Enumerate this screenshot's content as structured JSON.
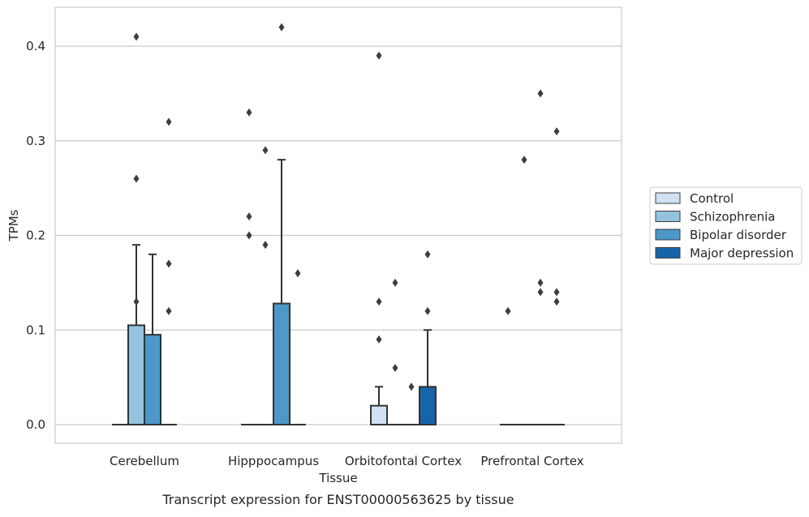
{
  "colors": {
    "grid": "#cccccc",
    "frame": "#cccccc",
    "line": "#333333",
    "Control": "#cfe1f2",
    "Schizophrenia": "#93c4de",
    "Bipolar disorder": "#4b98c9",
    "Major depression": "#1764ab"
  },
  "chart_data": {
    "type": "box",
    "title": "",
    "caption": "Transcript expression for ENST00000563625 by tissue",
    "xlabel": "Tissue",
    "ylabel": "TPMs",
    "ylim": [
      -0.02,
      0.44
    ],
    "yticks": [
      0.0,
      0.1,
      0.2,
      0.3,
      0.4
    ],
    "ytick_labels": [
      "0.0",
      "0.1",
      "0.2",
      "0.3",
      "0.4"
    ],
    "grid": "horizontal",
    "legend_position": "right",
    "legend": [
      "Control",
      "Schizophrenia",
      "Bipolar disorder",
      "Major depression"
    ],
    "categories": [
      "Cerebellum",
      "Hipppocampus",
      "Orbitofontal Cortex",
      "Prefrontal Cortex"
    ],
    "series": [
      {
        "name": "Control",
        "boxes": [
          {
            "q1": 0,
            "median": 0,
            "q3": 0,
            "whisker_low": 0,
            "whisker_high": 0,
            "outliers": []
          },
          {
            "q1": 0,
            "median": 0,
            "q3": 0,
            "whisker_low": 0,
            "whisker_high": 0,
            "outliers": [
              0.2,
              0.22,
              0.33
            ]
          },
          {
            "q1": 0,
            "median": 0,
            "q3": 0.02,
            "whisker_low": 0,
            "whisker_high": 0.04,
            "outliers": [
              0.09,
              0.13,
              0.39
            ]
          },
          {
            "q1": 0,
            "median": 0,
            "q3": 0,
            "whisker_low": 0,
            "whisker_high": 0,
            "outliers": [
              0.12
            ]
          }
        ]
      },
      {
        "name": "Schizophrenia",
        "boxes": [
          {
            "q1": 0,
            "median": 0,
            "q3": 0.105,
            "whisker_low": 0,
            "whisker_high": 0.19,
            "outliers": [
              0.13,
              0.26,
              0.41
            ]
          },
          {
            "q1": 0,
            "median": 0,
            "q3": 0,
            "whisker_low": 0,
            "whisker_high": 0,
            "outliers": [
              0.19,
              0.29
            ]
          },
          {
            "q1": 0,
            "median": 0,
            "q3": 0,
            "whisker_low": 0,
            "whisker_high": 0,
            "outliers": [
              0.06,
              0.15
            ]
          },
          {
            "q1": 0,
            "median": 0,
            "q3": 0,
            "whisker_low": 0,
            "whisker_high": 0,
            "outliers": [
              0.28
            ]
          }
        ]
      },
      {
        "name": "Bipolar disorder",
        "boxes": [
          {
            "q1": 0,
            "median": 0,
            "q3": 0.095,
            "whisker_low": 0,
            "whisker_high": 0.18,
            "outliers": []
          },
          {
            "q1": 0,
            "median": 0,
            "q3": 0.128,
            "whisker_low": 0,
            "whisker_high": 0.28,
            "outliers": [
              0.42
            ]
          },
          {
            "q1": 0,
            "median": 0,
            "q3": 0,
            "whisker_low": 0,
            "whisker_high": 0,
            "outliers": [
              0.04
            ]
          },
          {
            "q1": 0,
            "median": 0,
            "q3": 0,
            "whisker_low": 0,
            "whisker_high": 0,
            "outliers": [
              0.14,
              0.15,
              0.35
            ]
          }
        ]
      },
      {
        "name": "Major depression",
        "boxes": [
          {
            "q1": 0,
            "median": 0,
            "q3": 0,
            "whisker_low": 0,
            "whisker_high": 0,
            "outliers": [
              0.12,
              0.17,
              0.32
            ]
          },
          {
            "q1": 0,
            "median": 0,
            "q3": 0,
            "whisker_low": 0,
            "whisker_high": 0,
            "outliers": [
              0.16
            ]
          },
          {
            "q1": 0,
            "median": 0,
            "q3": 0.04,
            "whisker_low": 0,
            "whisker_high": 0.1,
            "outliers": [
              0.12,
              0.18
            ]
          },
          {
            "q1": 0,
            "median": 0,
            "q3": 0,
            "whisker_low": 0,
            "whisker_high": 0,
            "outliers": [
              0.13,
              0.14,
              0.31
            ]
          }
        ]
      }
    ]
  }
}
